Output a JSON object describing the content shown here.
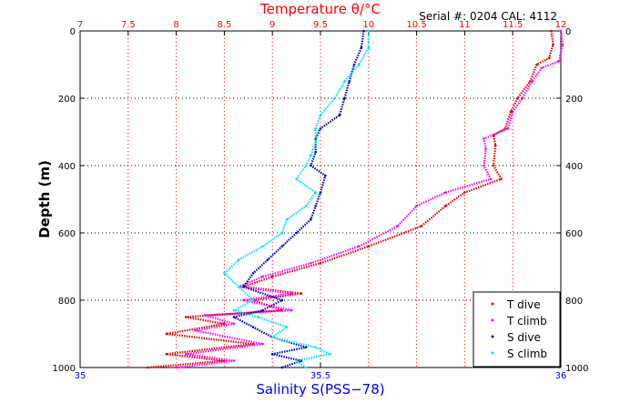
{
  "chart_data": {
    "type": "line",
    "title": "Temperature θ/°C",
    "annotation": "Serial #: 0204  CAL: 4112",
    "xlabel_bottom": "Salinity S(PSS−78)",
    "xlabel_top": "Temperature θ/°C",
    "ylabel": "Depth (m)",
    "ylim": [
      1000,
      0
    ],
    "xlim_bottom": [
      35,
      36
    ],
    "xlim_top": [
      7,
      12
    ],
    "grid": true,
    "legend_position": "bottom-right",
    "x_ticks_top": [
      "7",
      "7.5",
      "8",
      "8.5",
      "9",
      "9.5",
      "10",
      "10.5",
      "11",
      "11.5",
      "12"
    ],
    "x_ticks_bottom": [
      "35",
      "35.5",
      "36"
    ],
    "y_ticks": [
      "0",
      "200",
      "400",
      "600",
      "800",
      "1000"
    ],
    "colors": {
      "temperature_axis": "#ff0000",
      "salinity_axis": "#0000ff",
      "t_dive": "#e00000",
      "t_climb": "#ff00ff",
      "s_dive": "#0000cc",
      "s_climb": "#00e5ee"
    },
    "series": [
      {
        "name": "T dive",
        "axis": "temperature",
        "points": [
          [
            11.9,
            0
          ],
          [
            11.92,
            40
          ],
          [
            11.88,
            80
          ],
          [
            11.75,
            100
          ],
          [
            11.68,
            150
          ],
          [
            11.55,
            200
          ],
          [
            11.48,
            240
          ],
          [
            11.42,
            290
          ],
          [
            11.3,
            310
          ],
          [
            11.32,
            340
          ],
          [
            11.3,
            400
          ],
          [
            11.38,
            440
          ],
          [
            11.0,
            480
          ],
          [
            10.8,
            520
          ],
          [
            10.55,
            580
          ],
          [
            10.0,
            640
          ],
          [
            9.5,
            690
          ],
          [
            9.0,
            730
          ],
          [
            8.7,
            760
          ],
          [
            9.3,
            780
          ],
          [
            8.8,
            800
          ],
          [
            9.1,
            830
          ],
          [
            8.1,
            850
          ],
          [
            8.5,
            870
          ],
          [
            7.9,
            900
          ],
          [
            8.8,
            930
          ],
          [
            7.9,
            960
          ],
          [
            8.5,
            980
          ],
          [
            7.7,
            1000
          ]
        ]
      },
      {
        "name": "T climb",
        "axis": "temperature",
        "points": [
          [
            12.0,
            0
          ],
          [
            12.02,
            40
          ],
          [
            11.98,
            90
          ],
          [
            11.8,
            110
          ],
          [
            11.7,
            150
          ],
          [
            11.6,
            200
          ],
          [
            11.5,
            240
          ],
          [
            11.45,
            290
          ],
          [
            11.2,
            320
          ],
          [
            11.22,
            350
          ],
          [
            11.2,
            400
          ],
          [
            11.27,
            440
          ],
          [
            10.8,
            480
          ],
          [
            10.5,
            520
          ],
          [
            10.3,
            580
          ],
          [
            9.9,
            640
          ],
          [
            9.4,
            690
          ],
          [
            8.9,
            730
          ],
          [
            8.65,
            760
          ],
          [
            9.2,
            780
          ],
          [
            8.7,
            800
          ],
          [
            9.2,
            830
          ],
          [
            8.3,
            845
          ],
          [
            8.6,
            870
          ],
          [
            8.2,
            890
          ],
          [
            8.9,
            930
          ],
          [
            8.1,
            960
          ],
          [
            8.6,
            980
          ],
          [
            8.0,
            1000
          ]
        ]
      },
      {
        "name": "S dive",
        "axis": "salinity",
        "points": [
          [
            35.59,
            0
          ],
          [
            35.585,
            50
          ],
          [
            35.57,
            100
          ],
          [
            35.56,
            150
          ],
          [
            35.55,
            200
          ],
          [
            35.54,
            250
          ],
          [
            35.5,
            290
          ],
          [
            35.49,
            320
          ],
          [
            35.49,
            360
          ],
          [
            35.48,
            400
          ],
          [
            35.51,
            430
          ],
          [
            35.5,
            480
          ],
          [
            35.49,
            520
          ],
          [
            35.48,
            560
          ],
          [
            35.45,
            600
          ],
          [
            35.42,
            640
          ],
          [
            35.39,
            680
          ],
          [
            35.36,
            720
          ],
          [
            35.34,
            760
          ],
          [
            35.42,
            800
          ],
          [
            35.38,
            830
          ],
          [
            35.32,
            850
          ],
          [
            35.36,
            880
          ],
          [
            35.4,
            910
          ],
          [
            35.47,
            940
          ],
          [
            35.4,
            960
          ],
          [
            35.46,
            980
          ],
          [
            35.42,
            1000
          ]
        ]
      },
      {
        "name": "S climb",
        "axis": "salinity",
        "points": [
          [
            35.6,
            0
          ],
          [
            35.6,
            50
          ],
          [
            35.58,
            100
          ],
          [
            35.55,
            150
          ],
          [
            35.53,
            200
          ],
          [
            35.5,
            250
          ],
          [
            35.49,
            290
          ],
          [
            35.49,
            330
          ],
          [
            35.48,
            370
          ],
          [
            35.47,
            400
          ],
          [
            35.45,
            440
          ],
          [
            35.49,
            480
          ],
          [
            35.47,
            520
          ],
          [
            35.43,
            560
          ],
          [
            35.42,
            600
          ],
          [
            35.38,
            640
          ],
          [
            35.33,
            680
          ],
          [
            35.3,
            720
          ],
          [
            35.33,
            760
          ],
          [
            35.36,
            800
          ],
          [
            35.32,
            830
          ],
          [
            35.37,
            850
          ],
          [
            35.43,
            880
          ],
          [
            35.4,
            910
          ],
          [
            35.49,
            940
          ],
          [
            35.52,
            960
          ],
          [
            35.45,
            980
          ],
          [
            35.47,
            1000
          ]
        ]
      }
    ]
  }
}
